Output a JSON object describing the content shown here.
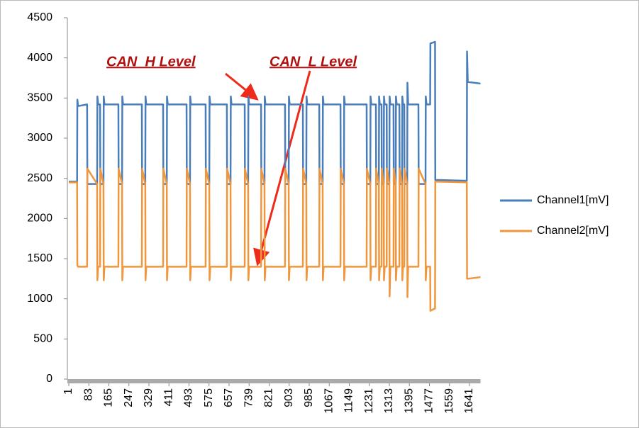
{
  "chart_data": {
    "type": "line",
    "annotations": [
      "CAN_H Level",
      "CAN_L Level"
    ],
    "x": [
      1,
      35,
      36,
      39,
      76,
      77,
      117,
      118,
      121,
      129,
      130,
      143,
      144,
      147,
      204,
      205,
      219,
      220,
      223,
      300,
      301,
      314,
      315,
      318,
      387,
      388,
      402,
      403,
      406,
      483,
      484,
      497,
      498,
      501,
      561,
      562,
      576,
      577,
      580,
      648,
      649,
      663,
      664,
      667,
      721,
      722,
      735,
      736,
      739,
      788,
      789,
      802,
      803,
      806,
      886,
      887,
      901,
      902,
      905,
      959,
      960,
      973,
      974,
      977,
      1026,
      1027,
      1040,
      1041,
      1044,
      1113,
      1114,
      1127,
      1128,
      1131,
      1220,
      1221,
      1235,
      1236,
      1239,
      1258,
      1259,
      1270,
      1271,
      1274,
      1281,
      1282,
      1290,
      1291,
      1294,
      1302,
      1303,
      1313,
      1314,
      1317,
      1330,
      1331,
      1339,
      1340,
      1343,
      1354,
      1355,
      1365,
      1366,
      1369,
      1374,
      1375,
      1386,
      1387,
      1390,
      1432,
      1433,
      1461,
      1462,
      1465,
      1480,
      1481,
      1500,
      1501,
      1630,
      1631,
      1634,
      1686
    ],
    "series": [
      {
        "name": "Channel1[mV]",
        "color": "#4a7ebb",
        "values": [
          2460,
          2460,
          3480,
          3400,
          3420,
          2430,
          2430,
          3520,
          3420,
          3420,
          2430,
          2430,
          3520,
          3420,
          3420,
          2430,
          2430,
          3520,
          3420,
          3420,
          2430,
          2430,
          3520,
          3420,
          3420,
          2430,
          2430,
          3520,
          3420,
          3420,
          2430,
          2430,
          3520,
          3420,
          3420,
          2430,
          2430,
          3520,
          3420,
          3420,
          2430,
          2430,
          3520,
          3420,
          3420,
          2430,
          2430,
          3520,
          3420,
          3420,
          2430,
          2430,
          3520,
          3420,
          3420,
          2430,
          2430,
          3520,
          3420,
          3420,
          2430,
          2430,
          3520,
          3420,
          3420,
          2430,
          2430,
          3520,
          3420,
          3420,
          2430,
          2430,
          3520,
          3420,
          3420,
          2430,
          2430,
          3520,
          3420,
          3420,
          2430,
          2430,
          3520,
          3420,
          3420,
          2430,
          2430,
          3520,
          3420,
          3420,
          2430,
          2430,
          3520,
          3420,
          3420,
          2430,
          2430,
          3520,
          3420,
          3420,
          2430,
          2430,
          3520,
          3420,
          3420,
          2430,
          2430,
          3690,
          3420,
          3420,
          2430,
          2430,
          3520,
          3420,
          3420,
          4180,
          4200,
          2480,
          2470,
          4080,
          3700,
          3680
        ]
      },
      {
        "name": "Channel2[mV]",
        "color": "#f0963c",
        "values": [
          2450,
          2450,
          1420,
          1400,
          1400,
          2620,
          2430,
          1230,
          1400,
          1400,
          2620,
          2430,
          1230,
          1400,
          1400,
          2620,
          2430,
          1230,
          1400,
          1400,
          2620,
          2430,
          1230,
          1400,
          1400,
          2620,
          2430,
          1230,
          1400,
          1400,
          2620,
          2430,
          1230,
          1400,
          1400,
          2620,
          2430,
          1230,
          1400,
          1400,
          2620,
          2430,
          1230,
          1400,
          1400,
          2620,
          2430,
          1230,
          1400,
          1400,
          2620,
          2430,
          1230,
          1400,
          1400,
          2620,
          2430,
          1230,
          1400,
          1400,
          2620,
          2430,
          1230,
          1400,
          1400,
          2620,
          2430,
          1230,
          1400,
          1400,
          2620,
          2430,
          1230,
          1400,
          1400,
          2620,
          2430,
          1230,
          1400,
          1400,
          2620,
          2430,
          1230,
          1400,
          1400,
          2620,
          2430,
          1230,
          1400,
          1400,
          2620,
          2430,
          1030,
          1400,
          1400,
          2620,
          2430,
          1230,
          1400,
          1400,
          2620,
          2430,
          1230,
          1400,
          1400,
          2620,
          2430,
          1020,
          1400,
          1400,
          2620,
          2430,
          1230,
          1400,
          1400,
          850,
          880,
          2460,
          2450,
          1250,
          1250,
          1270
        ]
      }
    ],
    "xlim": [
      1,
      1686
    ],
    "xticks": [
      1,
      83,
      165,
      247,
      329,
      411,
      493,
      575,
      657,
      739,
      821,
      903,
      985,
      1067,
      1149,
      1231,
      1313,
      1395,
      1477,
      1559,
      1641
    ],
    "ylim": [
      0,
      4500
    ],
    "yticks": [
      0,
      500,
      1000,
      1500,
      2000,
      2500,
      3000,
      3500,
      4000,
      4500
    ],
    "legend": "right"
  }
}
